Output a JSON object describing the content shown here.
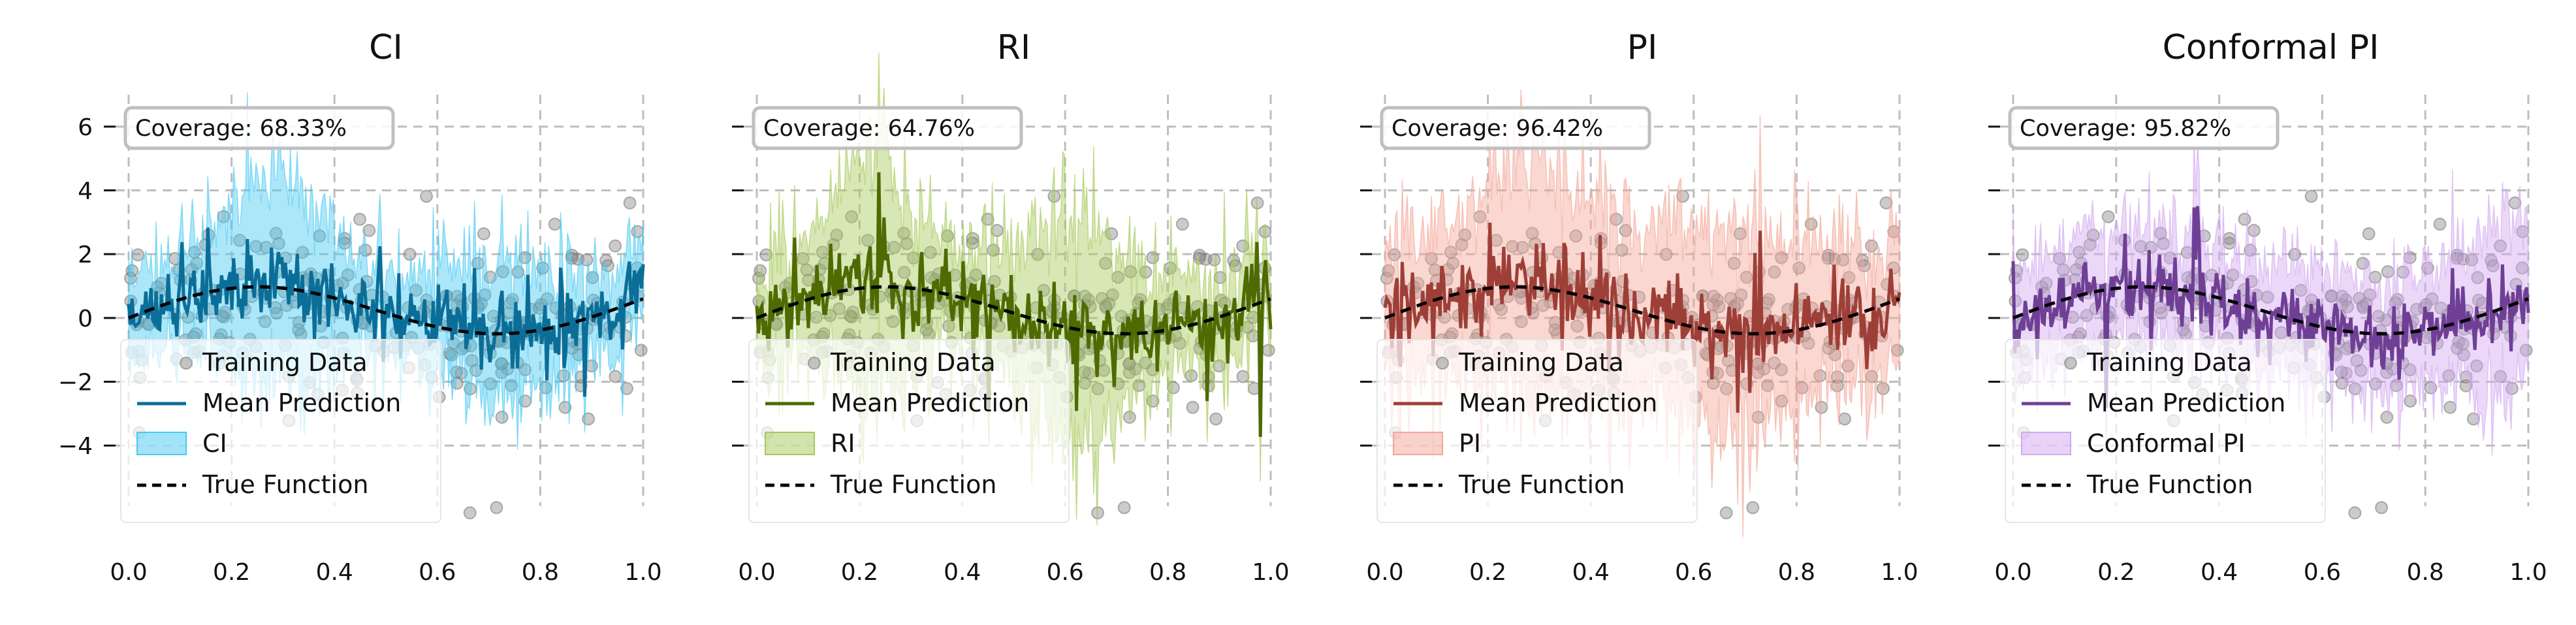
{
  "chart_data": [
    {
      "type": "line",
      "title": "CI",
      "band_label": "CI",
      "coverage_text": "Coverage: 68.33%",
      "color": "#0b6e99",
      "band_color": "#48c9f2",
      "xlim": [
        0.0,
        1.0
      ],
      "ylim": [
        -5.9,
        7.0
      ],
      "xticks": [
        "0.0",
        "0.2",
        "0.4",
        "0.6",
        "0.8",
        "1.0"
      ],
      "yticks": [
        "6",
        "4",
        "2",
        "0",
        "−2",
        "−4"
      ],
      "band_halfwidth": 1.6,
      "band_spike": 1.4,
      "band_bumps": [
        [
          0.28,
          2.6,
          0.08
        ],
        [
          0.72,
          1.0,
          0.07
        ]
      ],
      "pred_noise": 1.05,
      "legend": [
        "Training Data",
        "Mean Prediction",
        "CI",
        "True Function"
      ]
    },
    {
      "type": "line",
      "title": "RI",
      "band_label": "RI",
      "coverage_text": "Coverage: 64.76%",
      "color": "#4d6b00",
      "band_color": "#a6c95a",
      "xlim": [
        0.0,
        1.0
      ],
      "ylim": [
        -5.9,
        7.0
      ],
      "xticks": [
        "0.0",
        "0.2",
        "0.4",
        "0.6",
        "0.8",
        "1.0"
      ],
      "yticks": [
        "6",
        "4",
        "2",
        "0",
        "−2",
        "−4"
      ],
      "band_halfwidth": 1.7,
      "band_spike": 2.2,
      "band_bumps": [
        [
          0.22,
          3.2,
          0.07
        ],
        [
          0.62,
          2.6,
          0.08
        ]
      ],
      "pred_noise": 1.05,
      "legend": [
        "Training Data",
        "Mean Prediction",
        "RI",
        "True Function"
      ]
    },
    {
      "type": "line",
      "title": "PI",
      "band_label": "PI",
      "coverage_text": "Coverage: 96.42%",
      "color": "#9e3f37",
      "band_color": "#f4a698",
      "xlim": [
        0.0,
        1.0
      ],
      "ylim": [
        -5.9,
        7.0
      ],
      "xticks": [
        "0.0",
        "0.2",
        "0.4",
        "0.6",
        "0.8",
        "1.0"
      ],
      "yticks": [
        "6",
        "4",
        "2",
        "0",
        "−2",
        "−4"
      ],
      "band_halfwidth": 2.6,
      "band_spike": 1.8,
      "band_bumps": [
        [
          0.3,
          2.0,
          0.1
        ],
        [
          0.65,
          1.6,
          0.1
        ]
      ],
      "pred_noise": 1.05,
      "legend": [
        "Training Data",
        "Mean Prediction",
        "PI",
        "True Function"
      ]
    },
    {
      "type": "line",
      "title": "Conformal PI",
      "band_label": "Conformal PI",
      "coverage_text": "Coverage: 95.82%",
      "color": "#6f3f96",
      "band_color": "#d2a8f0",
      "xlim": [
        0.0,
        1.0
      ],
      "ylim": [
        -5.9,
        7.0
      ],
      "xticks": [
        "0.0",
        "0.2",
        "0.4",
        "0.6",
        "0.8",
        "1.0"
      ],
      "yticks": [
        "6",
        "4",
        "2",
        "0",
        "−2",
        "−4"
      ],
      "band_halfwidth": 2.2,
      "band_spike": 0.9,
      "band_bumps": [
        [
          0.95,
          1.6,
          0.05
        ]
      ],
      "pred_noise": 1.05,
      "legend": [
        "Training Data",
        "Mean Prediction",
        "Conformal PI",
        "True Function"
      ]
    }
  ]
}
